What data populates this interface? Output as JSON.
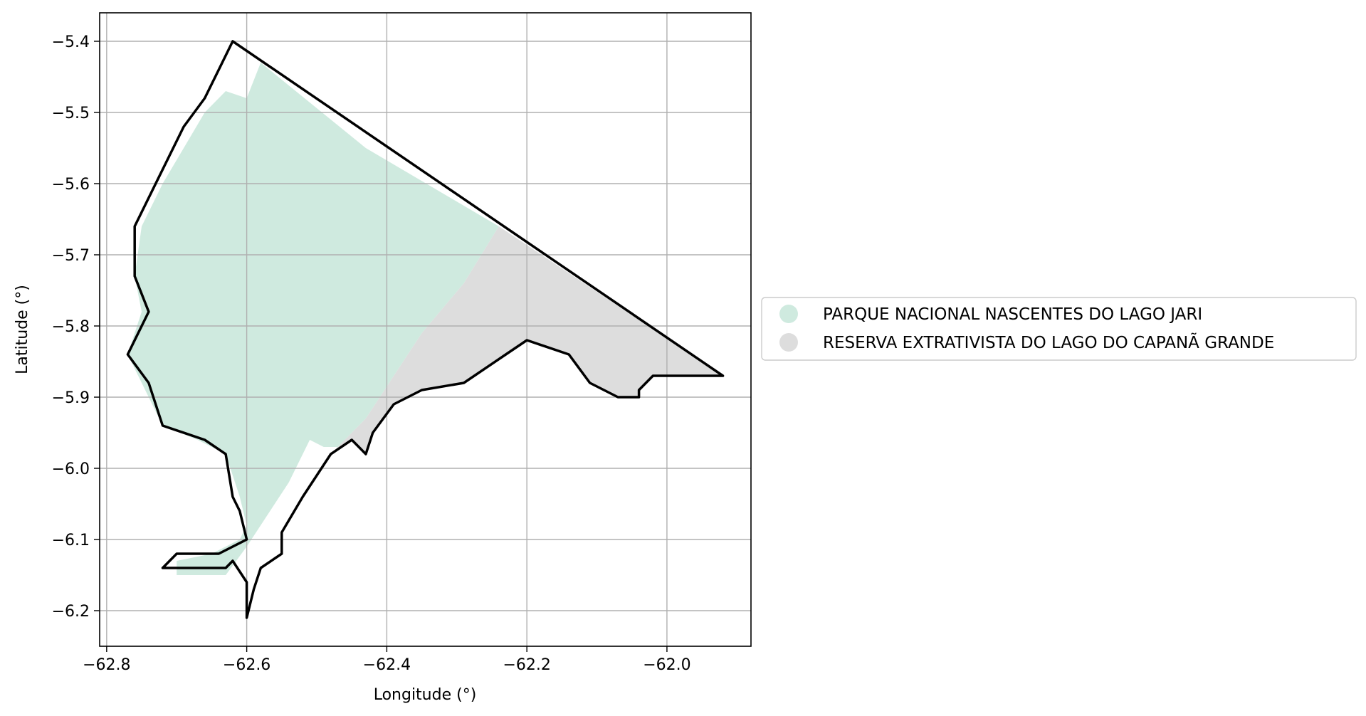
{
  "chart_data": {
    "type": "map",
    "xlabel": "Longitude (°)",
    "ylabel": "Latitude (°)",
    "xlim": [
      -62.81,
      -61.88
    ],
    "ylim": [
      -6.25,
      -5.36
    ],
    "x_ticks": [
      -62.8,
      -62.6,
      -62.4,
      -62.2,
      -62.0
    ],
    "y_ticks": [
      -5.4,
      -5.5,
      -5.6,
      -5.7,
      -5.8,
      -5.9,
      -6.0,
      -6.1,
      -6.2
    ],
    "x_tick_labels": [
      "−62.8",
      "−62.6",
      "−62.4",
      "−62.2",
      "−62.0"
    ],
    "y_tick_labels": [
      "−5.4",
      "−5.5",
      "−5.6",
      "−5.7",
      "−5.8",
      "−5.9",
      "−6.0",
      "−6.1",
      "−6.2"
    ],
    "grid": true,
    "legend_position": "center-right outside",
    "legend": [
      {
        "label": "PARQUE NACIONAL NASCENTES DO LAGO JARI",
        "color": "#cfeadf"
      },
      {
        "label": "RESERVA EXTRATIVISTA DO LAGO DO CAPANÃ GRANDE",
        "color": "#dddddd"
      }
    ],
    "regions": [
      {
        "name": "PARQUE NACIONAL NASCENTES DO LAGO JARI",
        "color": "#cfeadf",
        "coords": [
          [
            -62.62,
            -5.4
          ],
          [
            -62.58,
            -5.43
          ],
          [
            -62.6,
            -5.48
          ],
          [
            -62.63,
            -5.47
          ],
          [
            -62.66,
            -5.5
          ],
          [
            -62.69,
            -5.55
          ],
          [
            -62.72,
            -5.6
          ],
          [
            -62.75,
            -5.66
          ],
          [
            -62.76,
            -5.73
          ],
          [
            -62.75,
            -5.78
          ],
          [
            -62.77,
            -5.84
          ],
          [
            -62.74,
            -5.9
          ],
          [
            -62.72,
            -5.94
          ],
          [
            -62.67,
            -5.96
          ],
          [
            -62.63,
            -5.98
          ],
          [
            -62.61,
            -6.04
          ],
          [
            -62.6,
            -6.08
          ],
          [
            -62.61,
            -6.1
          ],
          [
            -62.65,
            -6.12
          ],
          [
            -62.7,
            -6.13
          ],
          [
            -62.7,
            -6.15
          ],
          [
            -62.63,
            -6.15
          ],
          [
            -62.6,
            -6.11
          ],
          [
            -62.54,
            -6.02
          ],
          [
            -62.51,
            -5.96
          ],
          [
            -62.49,
            -5.97
          ],
          [
            -62.47,
            -5.97
          ],
          [
            -62.43,
            -5.93
          ],
          [
            -62.35,
            -5.81
          ],
          [
            -62.29,
            -5.74
          ],
          [
            -62.24,
            -5.66
          ],
          [
            -62.43,
            -5.55
          ],
          [
            -62.58,
            -5.43
          ]
        ]
      },
      {
        "name": "RESERVA EXTRATIVISTA DO LAGO DO CAPANÃ GRANDE",
        "color": "#dddddd",
        "coords": [
          [
            -62.24,
            -5.66
          ],
          [
            -61.92,
            -5.87
          ],
          [
            -62.02,
            -5.87
          ],
          [
            -62.04,
            -5.89
          ],
          [
            -62.04,
            -5.9
          ],
          [
            -62.07,
            -5.9
          ],
          [
            -62.11,
            -5.88
          ],
          [
            -62.14,
            -5.84
          ],
          [
            -62.2,
            -5.82
          ],
          [
            -62.23,
            -5.84
          ],
          [
            -62.29,
            -5.88
          ],
          [
            -62.35,
            -5.89
          ],
          [
            -62.39,
            -5.91
          ],
          [
            -62.42,
            -5.95
          ],
          [
            -62.43,
            -5.98
          ],
          [
            -62.45,
            -5.96
          ],
          [
            -62.48,
            -5.98
          ],
          [
            -62.47,
            -5.97
          ],
          [
            -62.43,
            -5.93
          ],
          [
            -62.35,
            -5.81
          ],
          [
            -62.29,
            -5.74
          ]
        ]
      }
    ],
    "outlines": [
      [
        [
          -62.62,
          -5.4
        ],
        [
          -62.64,
          -5.44
        ],
        [
          -62.66,
          -5.48
        ],
        [
          -62.69,
          -5.52
        ],
        [
          -62.71,
          -5.56
        ],
        [
          -62.73,
          -5.6
        ],
        [
          -62.76,
          -5.66
        ],
        [
          -62.76,
          -5.73
        ],
        [
          -62.74,
          -5.78
        ],
        [
          -62.77,
          -5.84
        ],
        [
          -62.74,
          -5.88
        ],
        [
          -62.72,
          -5.94
        ],
        [
          -62.66,
          -5.96
        ],
        [
          -62.63,
          -5.98
        ],
        [
          -62.62,
          -6.04
        ],
        [
          -62.61,
          -6.06
        ],
        [
          -62.6,
          -6.1
        ],
        [
          -62.64,
          -6.12
        ],
        [
          -62.7,
          -6.12
        ],
        [
          -62.72,
          -6.14
        ],
        [
          -62.63,
          -6.14
        ],
        [
          -62.62,
          -6.13
        ],
        [
          -62.6,
          -6.16
        ],
        [
          -62.6,
          -6.21
        ],
        [
          -62.59,
          -6.17
        ],
        [
          -62.58,
          -6.14
        ],
        [
          -62.55,
          -6.12
        ],
        [
          -62.55,
          -6.09
        ],
        [
          -62.52,
          -6.04
        ],
        [
          -62.48,
          -5.98
        ],
        [
          -62.45,
          -5.96
        ],
        [
          -62.43,
          -5.98
        ],
        [
          -62.42,
          -5.95
        ],
        [
          -62.39,
          -5.91
        ],
        [
          -62.35,
          -5.89
        ],
        [
          -62.29,
          -5.88
        ],
        [
          -62.23,
          -5.84
        ],
        [
          -62.2,
          -5.82
        ],
        [
          -62.14,
          -5.84
        ],
        [
          -62.11,
          -5.88
        ],
        [
          -62.07,
          -5.9
        ],
        [
          -62.04,
          -5.9
        ],
        [
          -62.04,
          -5.89
        ],
        [
          -62.02,
          -5.87
        ],
        [
          -61.92,
          -5.87
        ],
        [
          -62.62,
          -5.4
        ]
      ]
    ]
  }
}
